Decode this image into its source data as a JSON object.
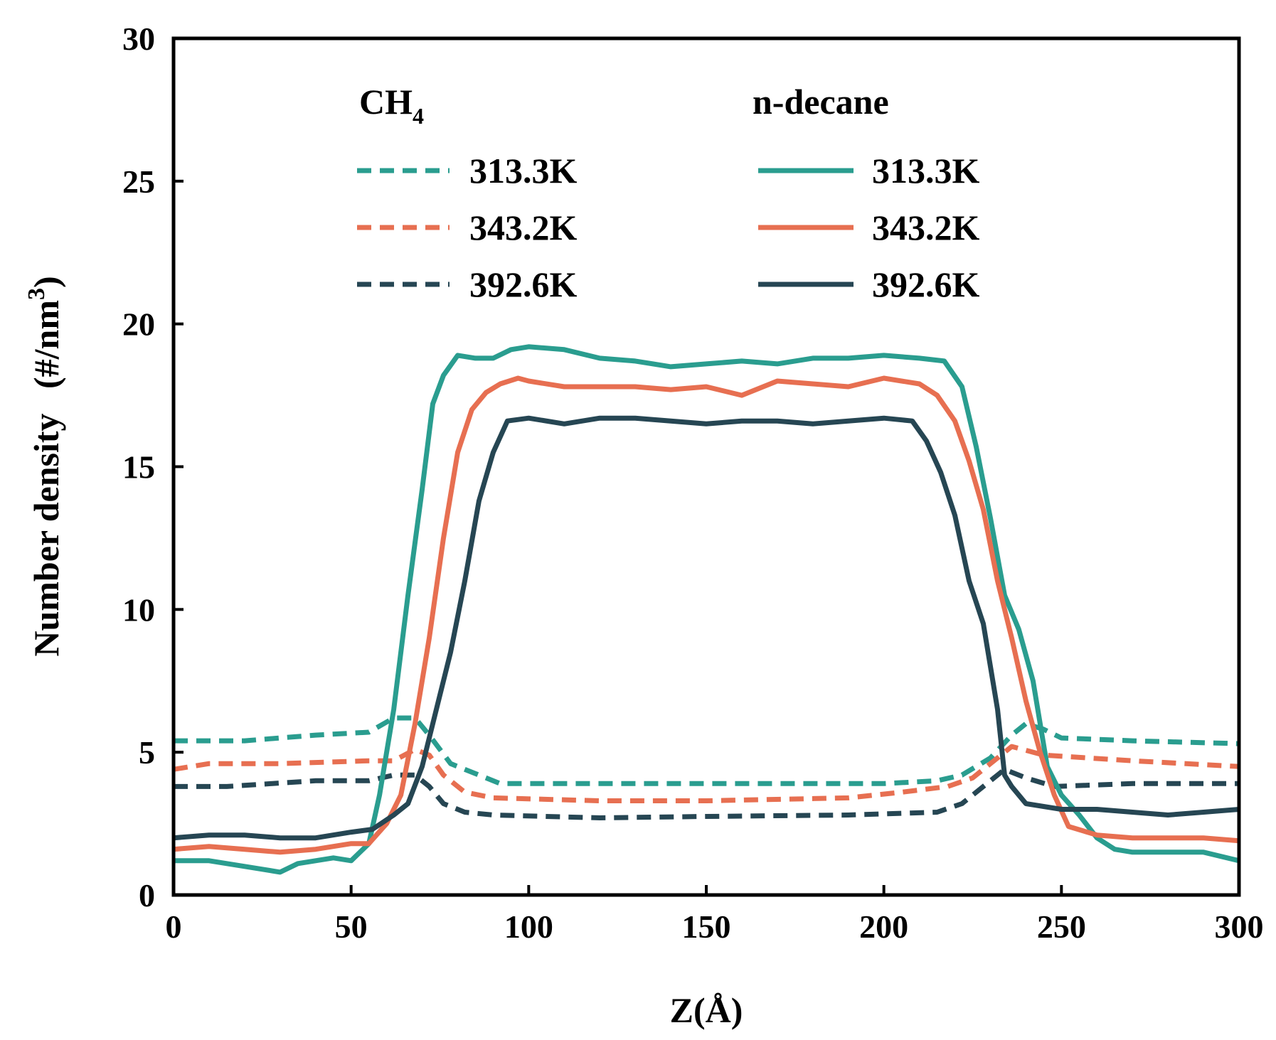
{
  "chart_data": {
    "type": "line",
    "xlabel": "Z(Å)",
    "ylabel_main": "Number density",
    "ylabel_unit_base": "(#/nm",
    "ylabel_unit_sup": "3",
    "ylabel_unit_close": ")",
    "xlim": [
      0,
      300
    ],
    "ylim": [
      0,
      30
    ],
    "xticks": [
      0,
      50,
      100,
      150,
      200,
      250,
      300
    ],
    "yticks": [
      0,
      5,
      10,
      15,
      20,
      25,
      30
    ],
    "grid": false,
    "legend": {
      "placement": "top",
      "groups": [
        {
          "title_base": "CH",
          "title_sub": "4",
          "style": "dashed",
          "entries": [
            "313.3K",
            "343.2K",
            "392.6K"
          ]
        },
        {
          "title_base": "n-decane",
          "title_sub": "",
          "style": "solid",
          "entries": [
            "313.3K",
            "343.2K",
            "392.6K"
          ]
        }
      ]
    },
    "colors": {
      "313.3K": "#2a9d8f",
      "343.2K": "#e76f51",
      "392.6K": "#264653"
    },
    "series": [
      {
        "group": "CH4",
        "temp": "313.3K",
        "style": "dashed",
        "color": "#2a9d8f",
        "points": [
          [
            0,
            5.4
          ],
          [
            20,
            5.4
          ],
          [
            40,
            5.6
          ],
          [
            55,
            5.7
          ],
          [
            62,
            6.2
          ],
          [
            68,
            6.2
          ],
          [
            72,
            5.6
          ],
          [
            78,
            4.6
          ],
          [
            86,
            4.2
          ],
          [
            92,
            3.9
          ],
          [
            110,
            3.9
          ],
          [
            150,
            3.9
          ],
          [
            200,
            3.9
          ],
          [
            215,
            4.0
          ],
          [
            222,
            4.2
          ],
          [
            230,
            4.8
          ],
          [
            236,
            5.6
          ],
          [
            240,
            6.0
          ],
          [
            245,
            5.8
          ],
          [
            250,
            5.5
          ],
          [
            270,
            5.4
          ],
          [
            300,
            5.3
          ]
        ]
      },
      {
        "group": "CH4",
        "temp": "343.2K",
        "style": "dashed",
        "color": "#e76f51",
        "points": [
          [
            0,
            4.4
          ],
          [
            10,
            4.6
          ],
          [
            30,
            4.6
          ],
          [
            55,
            4.7
          ],
          [
            62,
            4.7
          ],
          [
            68,
            5.1
          ],
          [
            72,
            4.9
          ],
          [
            76,
            4.2
          ],
          [
            82,
            3.6
          ],
          [
            90,
            3.4
          ],
          [
            120,
            3.3
          ],
          [
            150,
            3.3
          ],
          [
            190,
            3.4
          ],
          [
            205,
            3.6
          ],
          [
            218,
            3.8
          ],
          [
            225,
            4.1
          ],
          [
            232,
            4.8
          ],
          [
            236,
            5.2
          ],
          [
            245,
            4.9
          ],
          [
            270,
            4.7
          ],
          [
            300,
            4.5
          ]
        ]
      },
      {
        "group": "CH4",
        "temp": "392.6K",
        "style": "dashed",
        "color": "#264653",
        "points": [
          [
            0,
            3.8
          ],
          [
            15,
            3.8
          ],
          [
            40,
            4.0
          ],
          [
            55,
            4.0
          ],
          [
            62,
            4.2
          ],
          [
            68,
            4.2
          ],
          [
            72,
            3.8
          ],
          [
            76,
            3.2
          ],
          [
            82,
            2.9
          ],
          [
            90,
            2.8
          ],
          [
            120,
            2.7
          ],
          [
            150,
            2.75
          ],
          [
            190,
            2.8
          ],
          [
            215,
            2.9
          ],
          [
            222,
            3.2
          ],
          [
            228,
            3.8
          ],
          [
            234,
            4.4
          ],
          [
            240,
            4.1
          ],
          [
            248,
            3.8
          ],
          [
            270,
            3.9
          ],
          [
            300,
            3.9
          ]
        ]
      },
      {
        "group": "n-decane",
        "temp": "313.3K",
        "style": "solid",
        "color": "#2a9d8f",
        "points": [
          [
            0,
            1.2
          ],
          [
            10,
            1.2
          ],
          [
            20,
            1.0
          ],
          [
            25,
            0.9
          ],
          [
            30,
            0.8
          ],
          [
            35,
            1.1
          ],
          [
            45,
            1.3
          ],
          [
            50,
            1.2
          ],
          [
            55,
            1.8
          ],
          [
            58,
            3.5
          ],
          [
            62,
            6.5
          ],
          [
            66,
            10.5
          ],
          [
            70,
            14.2
          ],
          [
            73,
            17.2
          ],
          [
            76,
            18.2
          ],
          [
            80,
            18.9
          ],
          [
            85,
            18.8
          ],
          [
            90,
            18.8
          ],
          [
            95,
            19.1
          ],
          [
            100,
            19.2
          ],
          [
            110,
            19.1
          ],
          [
            120,
            18.8
          ],
          [
            130,
            18.7
          ],
          [
            140,
            18.5
          ],
          [
            150,
            18.6
          ],
          [
            160,
            18.7
          ],
          [
            170,
            18.6
          ],
          [
            180,
            18.8
          ],
          [
            190,
            18.8
          ],
          [
            200,
            18.9
          ],
          [
            210,
            18.8
          ],
          [
            217,
            18.7
          ],
          [
            222,
            17.8
          ],
          [
            226,
            15.7
          ],
          [
            230,
            13.2
          ],
          [
            234,
            10.5
          ],
          [
            238,
            9.3
          ],
          [
            242,
            7.5
          ],
          [
            246,
            4.5
          ],
          [
            250,
            3.5
          ],
          [
            255,
            2.8
          ],
          [
            260,
            2.0
          ],
          [
            265,
            1.6
          ],
          [
            270,
            1.5
          ],
          [
            280,
            1.5
          ],
          [
            290,
            1.5
          ],
          [
            300,
            1.2
          ]
        ]
      },
      {
        "group": "n-decane",
        "temp": "343.2K",
        "style": "solid",
        "color": "#e76f51",
        "points": [
          [
            0,
            1.6
          ],
          [
            10,
            1.7
          ],
          [
            20,
            1.6
          ],
          [
            30,
            1.5
          ],
          [
            40,
            1.6
          ],
          [
            50,
            1.8
          ],
          [
            55,
            1.8
          ],
          [
            60,
            2.5
          ],
          [
            64,
            3.5
          ],
          [
            68,
            6.0
          ],
          [
            72,
            9.0
          ],
          [
            76,
            12.5
          ],
          [
            80,
            15.5
          ],
          [
            84,
            17.0
          ],
          [
            88,
            17.6
          ],
          [
            92,
            17.9
          ],
          [
            97,
            18.1
          ],
          [
            100,
            18.0
          ],
          [
            110,
            17.8
          ],
          [
            120,
            17.8
          ],
          [
            130,
            17.8
          ],
          [
            140,
            17.7
          ],
          [
            150,
            17.8
          ],
          [
            160,
            17.5
          ],
          [
            170,
            18.0
          ],
          [
            180,
            17.9
          ],
          [
            190,
            17.8
          ],
          [
            200,
            18.1
          ],
          [
            210,
            17.9
          ],
          [
            215,
            17.5
          ],
          [
            220,
            16.6
          ],
          [
            224,
            15.2
          ],
          [
            228,
            13.5
          ],
          [
            232,
            11.0
          ],
          [
            236,
            9.0
          ],
          [
            240,
            6.8
          ],
          [
            244,
            5.0
          ],
          [
            248,
            3.5
          ],
          [
            252,
            2.4
          ],
          [
            260,
            2.1
          ],
          [
            270,
            2.0
          ],
          [
            280,
            2.0
          ],
          [
            290,
            2.0
          ],
          [
            300,
            1.9
          ]
        ]
      },
      {
        "group": "n-decane",
        "temp": "392.6K",
        "style": "solid",
        "color": "#264653",
        "points": [
          [
            0,
            2.0
          ],
          [
            10,
            2.1
          ],
          [
            20,
            2.1
          ],
          [
            30,
            2.0
          ],
          [
            40,
            2.0
          ],
          [
            50,
            2.2
          ],
          [
            56,
            2.3
          ],
          [
            62,
            2.8
          ],
          [
            66,
            3.2
          ],
          [
            70,
            4.5
          ],
          [
            74,
            6.5
          ],
          [
            78,
            8.5
          ],
          [
            82,
            11.0
          ],
          [
            86,
            13.8
          ],
          [
            90,
            15.5
          ],
          [
            94,
            16.6
          ],
          [
            100,
            16.7
          ],
          [
            110,
            16.5
          ],
          [
            120,
            16.7
          ],
          [
            130,
            16.7
          ],
          [
            140,
            16.6
          ],
          [
            150,
            16.5
          ],
          [
            160,
            16.6
          ],
          [
            170,
            16.6
          ],
          [
            180,
            16.5
          ],
          [
            190,
            16.6
          ],
          [
            200,
            16.7
          ],
          [
            208,
            16.6
          ],
          [
            212,
            15.9
          ],
          [
            216,
            14.8
          ],
          [
            220,
            13.3
          ],
          [
            224,
            11.0
          ],
          [
            228,
            9.5
          ],
          [
            232,
            6.5
          ],
          [
            234,
            4.2
          ],
          [
            236,
            3.8
          ],
          [
            240,
            3.2
          ],
          [
            250,
            3.0
          ],
          [
            260,
            3.0
          ],
          [
            270,
            2.9
          ],
          [
            280,
            2.8
          ],
          [
            290,
            2.9
          ],
          [
            300,
            3.0
          ]
        ]
      }
    ]
  }
}
